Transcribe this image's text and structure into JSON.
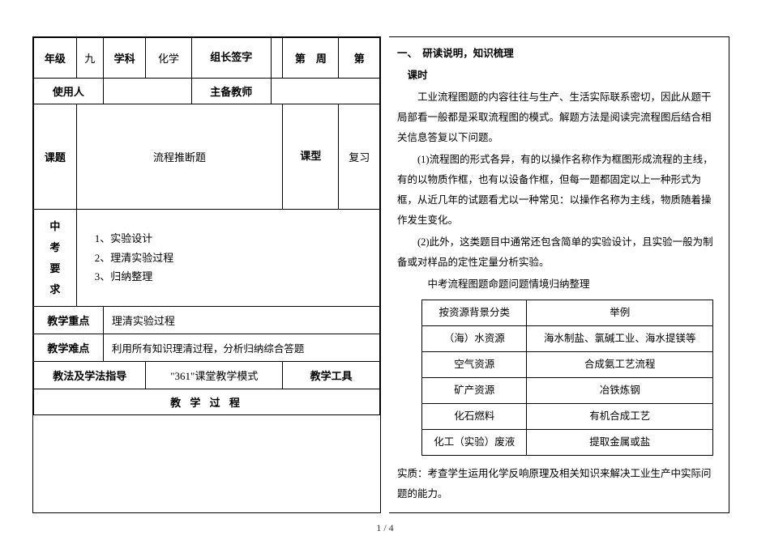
{
  "header": {
    "grade_label": "年级",
    "grade_value": "九",
    "subject_label": "学科",
    "subject_value": "化学",
    "signer_label": "组长签字",
    "week_label": "第　周",
    "period_label": "第",
    "user_label": "使用人",
    "main_teacher_label": "主备教师",
    "topic_label": "课题",
    "topic_value": "流程推断题",
    "type_label": "课型",
    "type_value": "复习",
    "requirement_label_1": "中",
    "requirement_label_2": "考",
    "requirement_label_3": "要",
    "requirement_label_4": "求",
    "req_item1": "1、实验设计",
    "req_item2": "2、理清实验过程",
    "req_item3": "3、归纳整理",
    "teach_focus_label": "教学重点",
    "teach_focus_value": "理清实验过程",
    "teach_difficulty_label": "教学难点",
    "teach_difficulty_value": "利用所有知识理清过程，分析归纳综合答题",
    "teach_method_label": "教法及学法指导",
    "teach_method_value": "\"361\"课堂教学模式",
    "teach_tool_label": "教学工具",
    "teach_process_label": "教 学 过 程"
  },
  "content": {
    "section_title": "一、　研读说明，知识梳理",
    "period_text": "　课时",
    "para1": "工业流程图题的内容往往与生产、生活实际联系密切，因此从题干局部看一般都是采取流程图的模式。解题方法是阅读完流程图后结合相关信息答复以下问题。",
    "para2": "(1)流程图的形式各异，有的以操作名称作为框图形成流程的主线，有的以物质作框，也有以设备作框，但每一题都固定以上一种形式为框，从近几年的试题看尤以一种常见：以操作名称为主线，物质随着操作发生变化。",
    "para3": "(2)此外，这类题目中通常还包含简单的实验设计，且实验一般为制备或对样品的定性定量分析实验。",
    "para4": "中考流程图题命题问题情境归纳整理",
    "essence": "实质：考查学生运用化学反响原理及相关知识来解决工业生产中实际问题的能力。"
  },
  "category_table": {
    "header_col1": "按资源背景分类",
    "header_col2": "举例",
    "rows": [
      [
        "（海）水资源",
        "海水制盐、氯碱工业、海水提镁等"
      ],
      [
        "空气资源",
        "合成氨工艺流程"
      ],
      [
        "矿产资源",
        "冶铁炼钢"
      ],
      [
        "化石燃料",
        "有机合成工艺"
      ],
      [
        "化工（实验）废液",
        "提取金属或盐"
      ]
    ]
  },
  "page_number": "1 / 4",
  "colors": {
    "border": "#000000",
    "text": "#000000",
    "background": "#ffffff"
  }
}
